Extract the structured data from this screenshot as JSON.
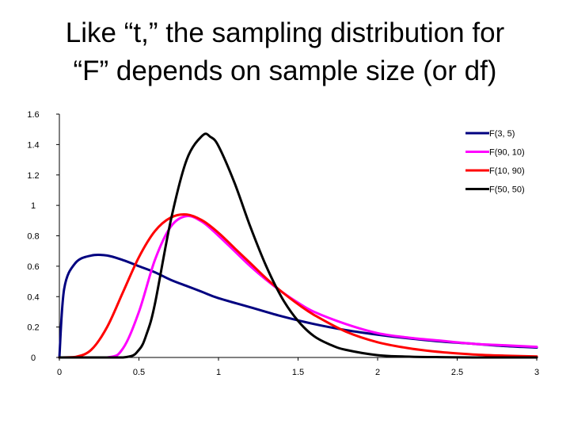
{
  "slide": {
    "title_line1": "Like “t,” the sampling distribution for",
    "title_line2": "“F” depends on sample size (or df)"
  },
  "chart_data": {
    "type": "line",
    "title": "",
    "xlabel": "",
    "ylabel": "",
    "xlim": [
      0,
      3
    ],
    "ylim": [
      0,
      1.6
    ],
    "x_ticks": [
      "0",
      "0.5",
      "1",
      "1.5",
      "2",
      "2.5",
      "3"
    ],
    "y_ticks": [
      "0",
      "0.2",
      "0.4",
      "0.6",
      "0.8",
      "1",
      "1.2",
      "1.4",
      "1.6"
    ],
    "grid": false,
    "legend_position": "top-right",
    "series": [
      {
        "name": "F(3, 5)",
        "color": "#000080",
        "x": [
          0,
          0.03,
          0.1,
          0.2,
          0.3,
          0.4,
          0.5,
          0.6,
          0.7,
          0.8,
          0.9,
          1.0,
          1.2,
          1.4,
          1.6,
          1.8,
          2.0,
          2.2,
          2.4,
          2.6,
          2.8,
          3.0
        ],
        "y": [
          0,
          0.45,
          0.62,
          0.67,
          0.67,
          0.64,
          0.6,
          0.56,
          0.51,
          0.47,
          0.43,
          0.39,
          0.33,
          0.27,
          0.22,
          0.18,
          0.15,
          0.125,
          0.105,
          0.09,
          0.075,
          0.065
        ]
      },
      {
        "name": "F(90, 10)",
        "color": "#ff00ff",
        "x": [
          0,
          0.3,
          0.4,
          0.5,
          0.6,
          0.7,
          0.8,
          0.9,
          1.0,
          1.1,
          1.2,
          1.3,
          1.4,
          1.5,
          1.6,
          1.8,
          2.0,
          2.2,
          2.4,
          2.6,
          2.8,
          3.0
        ],
        "y": [
          0,
          0.0,
          0.06,
          0.3,
          0.64,
          0.86,
          0.93,
          0.89,
          0.8,
          0.7,
          0.6,
          0.51,
          0.43,
          0.36,
          0.3,
          0.22,
          0.16,
          0.13,
          0.11,
          0.09,
          0.08,
          0.07
        ]
      },
      {
        "name": "F(10, 90)",
        "color": "#ff0000",
        "x": [
          0,
          0.1,
          0.2,
          0.3,
          0.4,
          0.5,
          0.6,
          0.7,
          0.8,
          0.9,
          1.0,
          1.1,
          1.2,
          1.3,
          1.4,
          1.5,
          1.6,
          1.8,
          2.0,
          2.2,
          2.4,
          2.6,
          2.8,
          3.0
        ],
        "y": [
          0,
          0.003,
          0.05,
          0.2,
          0.43,
          0.66,
          0.83,
          0.92,
          0.94,
          0.9,
          0.82,
          0.72,
          0.62,
          0.52,
          0.43,
          0.35,
          0.28,
          0.17,
          0.1,
          0.06,
          0.035,
          0.02,
          0.012,
          0.007
        ]
      },
      {
        "name": "F(50, 50)",
        "color": "#000000",
        "x": [
          0,
          0.4,
          0.5,
          0.55,
          0.6,
          0.7,
          0.8,
          0.9,
          0.95,
          1.0,
          1.1,
          1.2,
          1.3,
          1.4,
          1.5,
          1.6,
          1.7,
          1.8,
          2.0,
          2.2,
          2.4,
          2.6,
          3.0
        ],
        "y": [
          0,
          0.0,
          0.05,
          0.16,
          0.35,
          0.9,
          1.3,
          1.46,
          1.45,
          1.39,
          1.15,
          0.86,
          0.6,
          0.39,
          0.24,
          0.14,
          0.085,
          0.05,
          0.015,
          0.005,
          0.002,
          0.0,
          0.0
        ]
      }
    ]
  }
}
